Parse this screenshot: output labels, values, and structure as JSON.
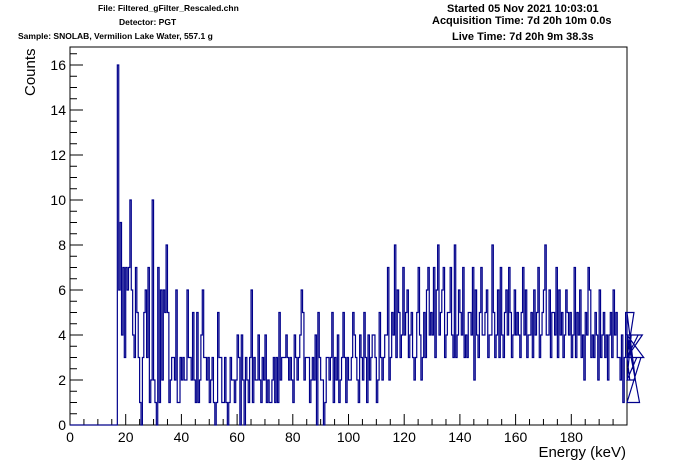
{
  "header": {
    "file": "File: Filtered_gFilter_Rescaled.chn",
    "detector": "Detector: PGT",
    "sample": "Sample: SNOLAB, Vermilion Lake Water, 557.1 g",
    "started": "Started 05 Nov 2021 10:03:01",
    "acquisition": "Acquisition Time: 7d 20h 10m 0.0s",
    "live": "Live Time: 7d 20h 9m 38.3s"
  },
  "chart_data": {
    "type": "histogram",
    "title": "",
    "xlabel": "Energy (keV)",
    "ylabel": "Counts",
    "xlim": [
      0,
      200
    ],
    "ylim": [
      0,
      16.8
    ],
    "x_ticks": [
      0,
      20,
      40,
      60,
      80,
      100,
      120,
      140,
      160,
      180
    ],
    "y_ticks": [
      0,
      2,
      4,
      6,
      8,
      10,
      12,
      14,
      16
    ],
    "line_color": "#00008b",
    "bin_width": 0.5,
    "x_start": 0,
    "values": [
      0,
      0,
      0,
      0,
      0,
      0,
      0,
      0,
      0,
      0,
      0,
      0,
      0,
      0,
      0,
      0,
      0,
      0,
      0,
      0,
      0,
      0,
      0,
      0,
      0,
      0,
      0,
      0,
      0,
      0,
      0,
      0,
      0,
      0,
      16,
      6,
      9,
      4,
      7,
      3,
      7,
      6,
      7,
      10,
      6,
      4,
      3,
      7,
      5,
      3,
      1,
      0,
      3,
      5,
      6,
      3,
      7,
      1,
      2,
      10,
      2,
      1,
      0,
      7,
      1,
      6,
      2,
      6,
      5,
      8,
      5,
      1,
      2,
      3,
      3,
      2,
      6,
      1,
      1,
      3,
      2,
      3,
      2,
      2,
      6,
      3,
      3,
      2,
      5,
      2,
      1,
      5,
      1,
      2,
      4,
      6,
      3,
      3,
      2,
      3,
      1,
      2,
      3,
      1,
      0,
      1,
      5,
      3,
      3,
      1,
      1,
      3,
      1,
      0,
      1,
      3,
      2,
      2,
      1,
      2,
      4,
      3,
      0,
      4,
      2,
      0,
      3,
      2,
      1,
      3,
      6,
      1,
      3,
      2,
      2,
      4,
      2,
      1,
      3,
      2,
      4,
      1,
      2,
      1,
      1,
      2,
      3,
      1,
      3,
      1,
      5,
      2,
      3,
      3,
      3,
      4,
      3,
      2,
      3,
      2,
      1,
      4,
      3,
      2,
      3,
      4,
      6,
      5,
      2,
      3,
      3,
      3,
      1,
      2,
      3,
      2,
      4,
      0,
      5,
      3,
      2,
      2,
      0,
      1,
      3,
      3,
      2,
      3,
      5,
      1,
      3,
      2,
      4,
      1,
      2,
      3,
      5,
      3,
      1,
      3,
      2,
      2,
      3,
      5,
      4,
      3,
      2,
      1,
      4,
      3,
      2,
      5,
      3,
      1,
      4,
      2,
      3,
      4,
      4,
      3,
      1,
      2,
      5,
      3,
      2,
      3,
      4,
      4,
      7,
      2,
      3,
      5,
      4,
      8,
      3,
      6,
      5,
      3,
      4,
      7,
      4,
      5,
      6,
      3,
      4,
      5,
      3,
      2,
      3,
      5,
      7,
      4,
      2,
      3,
      5,
      3,
      6,
      7,
      4,
      5,
      4,
      7,
      3,
      6,
      8,
      4,
      5,
      6,
      7,
      3,
      4,
      5,
      5,
      7,
      4,
      3,
      8,
      3,
      4,
      6,
      5,
      4,
      7,
      3,
      4,
      3,
      5,
      5,
      4,
      7,
      2,
      6,
      4,
      3,
      5,
      7,
      4,
      4,
      5,
      6,
      3,
      4,
      4,
      8,
      5,
      3,
      4,
      6,
      3,
      7,
      4,
      3,
      5,
      6,
      4,
      7,
      5,
      3,
      4,
      6,
      4,
      5,
      4,
      3,
      5,
      7,
      4,
      6,
      3,
      4,
      4,
      5,
      3,
      6,
      4,
      5,
      7,
      3,
      4,
      5,
      6,
      8,
      4,
      4,
      6,
      3,
      5,
      5,
      4,
      7,
      3,
      6,
      4,
      5,
      3,
      4,
      6,
      5,
      4,
      5,
      3,
      4,
      7,
      3,
      5,
      4,
      6,
      3,
      4,
      2,
      5,
      4,
      7,
      6,
      3,
      4,
      3,
      5,
      4,
      2,
      6,
      3,
      4,
      5,
      3,
      4,
      2,
      4,
      5,
      3,
      6,
      4,
      5,
      3,
      3,
      2,
      4,
      1,
      3,
      5,
      4,
      3,
      2,
      4,
      3,
      5,
      2,
      3,
      4,
      1,
      3,
      4,
      3
    ]
  }
}
